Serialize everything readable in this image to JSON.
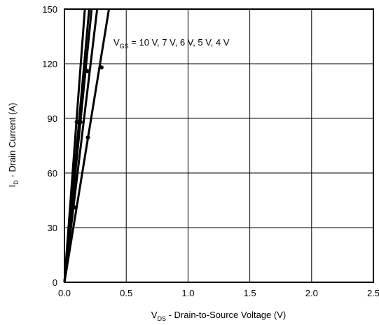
{
  "chart_data": {
    "type": "line",
    "xlabel": {
      "main": "V",
      "sub": "DS",
      "rest": " - Drain-to-Source Voltage (V)"
    },
    "ylabel": {
      "main": "I",
      "sub": "D",
      "rest": " - Drain Current (A)"
    },
    "xlim": [
      0,
      2.5
    ],
    "ylim": [
      0,
      150
    ],
    "xticks": [
      "0.0",
      "0.5",
      "1.0",
      "1.5",
      "2.0",
      "2.5"
    ],
    "yticks": [
      "0",
      "30",
      "60",
      "90",
      "120",
      "150"
    ],
    "grid": true,
    "annotation": {
      "main": "V",
      "sub": "GS",
      "rest": " = 10 V, 7 V, 6 V, 5 V, 4 V"
    },
    "series": [
      {
        "x": [
          0,
          0.165
        ],
        "y": [
          0,
          150
        ]
      },
      {
        "x": [
          0,
          0.2
        ],
        "y": [
          0,
          150
        ]
      },
      {
        "x": [
          0,
          0.22
        ],
        "y": [
          0,
          150
        ]
      },
      {
        "x": [
          0,
          0.265
        ],
        "y": [
          0,
          150
        ]
      },
      {
        "x": [
          0,
          0.36
        ],
        "y": [
          0,
          150
        ]
      }
    ],
    "markers": [
      {
        "x": 0.09,
        "y": 41
      },
      {
        "x": 0.1,
        "y": 88
      },
      {
        "x": 0.13,
        "y": 88
      },
      {
        "x": 0.185,
        "y": 116
      },
      {
        "x": 0.19,
        "y": 79.5
      },
      {
        "x": 0.3,
        "y": 118
      }
    ]
  }
}
